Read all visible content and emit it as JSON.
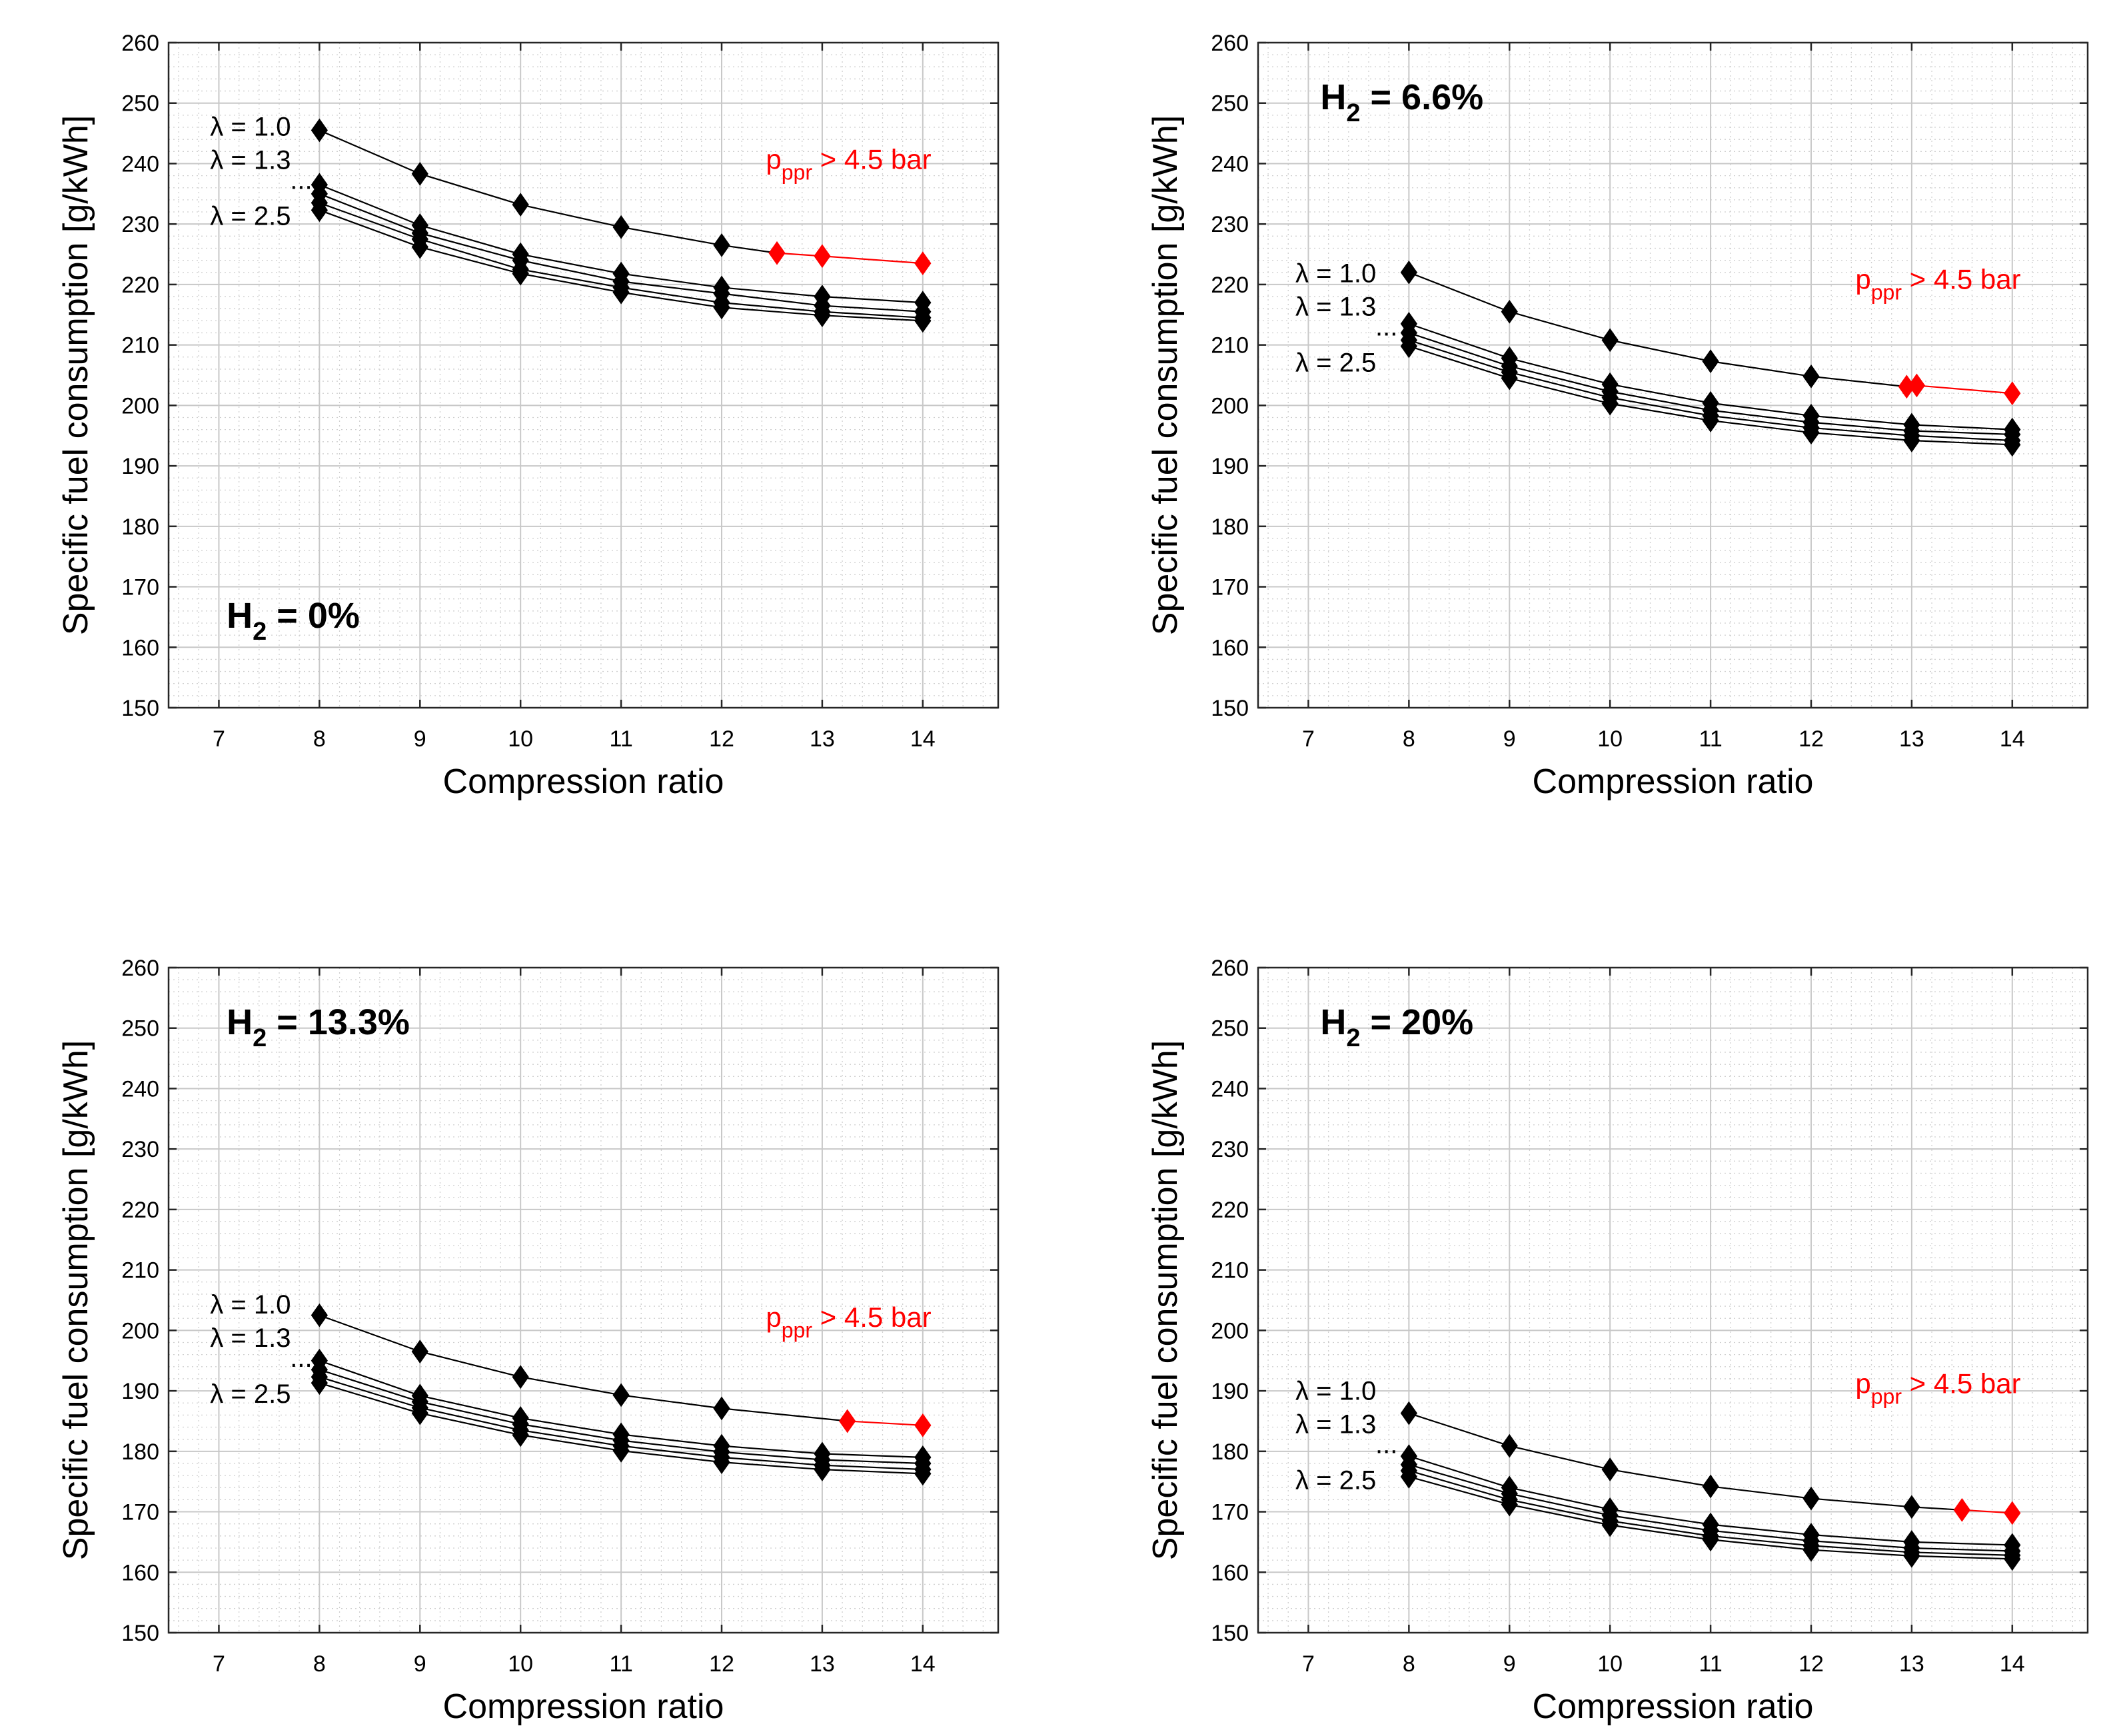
{
  "colors": {
    "normal": "#000000",
    "boost": "#ff0000",
    "grid_major": "#c8c8c8",
    "grid_minor": "#cfcfcf",
    "background": "#ffffff"
  },
  "chart_data": [
    {
      "type": "line",
      "title": "",
      "xlabel": "Compression ratio",
      "ylabel": "Specific fuel consumption [g/kWh]",
      "xlim": [
        6.5,
        14.75
      ],
      "ylim": [
        150,
        260
      ],
      "xticks": [
        "7",
        "8",
        "9",
        "10",
        "11",
        "12",
        "13",
        "14"
      ],
      "yticks": [
        "150",
        "160",
        "170",
        "180",
        "190",
        "200",
        "210",
        "220",
        "230",
        "240",
        "250",
        "260"
      ],
      "grid": "major+minor",
      "h2_label": {
        "prefix": "H",
        "sub": "2",
        "suffix": " = 0%"
      },
      "lambda_labels": [
        "λ = 1.0",
        "λ = 1.3",
        "...",
        "λ = 2.5"
      ],
      "boost_label": {
        "prefix": "p",
        "sub": "ppr",
        "suffix": " > 4.5 bar"
      },
      "series": [
        {
          "name": "λ = 1.0",
          "x": [
            8,
            9,
            10,
            11,
            12,
            12.55,
            13,
            14
          ],
          "y": [
            245.5,
            238.3,
            233.2,
            229.5,
            226.5,
            225.2,
            224.7,
            223.5
          ],
          "red_from_index": 5
        },
        {
          "name": "λ = 1.3",
          "x": [
            8,
            9,
            10,
            11,
            12,
            13,
            14
          ],
          "y": [
            236.5,
            229.8,
            225.0,
            221.8,
            219.5,
            218.0,
            217.0
          ]
        },
        {
          "name": "λ ...",
          "x": [
            8,
            9,
            10,
            11,
            12,
            13,
            14
          ],
          "y": [
            235.0,
            228.5,
            224.0,
            220.5,
            218.5,
            216.5,
            215.5
          ]
        },
        {
          "name": "λ ...",
          "x": [
            8,
            9,
            10,
            11,
            12,
            13,
            14
          ],
          "y": [
            233.5,
            227.5,
            222.5,
            219.5,
            217.0,
            215.5,
            214.5
          ]
        },
        {
          "name": "λ = 2.5",
          "x": [
            8,
            9,
            10,
            11,
            12,
            13,
            14
          ],
          "y": [
            232.3,
            226.2,
            221.8,
            218.7,
            216.2,
            214.9,
            214.0
          ]
        }
      ]
    },
    {
      "type": "line",
      "title": "",
      "xlabel": "Compression ratio",
      "ylabel": "Specific fuel consumption [g/kWh]",
      "xlim": [
        6.5,
        14.75
      ],
      "ylim": [
        150,
        260
      ],
      "xticks": [
        "7",
        "8",
        "9",
        "10",
        "11",
        "12",
        "13",
        "14"
      ],
      "yticks": [
        "150",
        "160",
        "170",
        "180",
        "190",
        "200",
        "210",
        "220",
        "230",
        "240",
        "250",
        "260"
      ],
      "grid": "major+minor",
      "h2_label": {
        "prefix": "H",
        "sub": "2",
        "suffix": " = 6.6%"
      },
      "lambda_labels": [
        "λ = 1.0",
        "λ = 1.3",
        "...",
        "λ = 2.5"
      ],
      "boost_label": {
        "prefix": "p",
        "sub": "ppr",
        "suffix": " > 4.5 bar"
      },
      "series": [
        {
          "name": "λ = 1.0",
          "x": [
            8,
            9,
            10,
            11,
            12,
            12.95,
            13.05,
            14
          ],
          "y": [
            222.0,
            215.5,
            210.8,
            207.3,
            204.8,
            203.1,
            203.3,
            202.0
          ],
          "red_from_index": 5
        },
        {
          "name": "λ = 1.3",
          "x": [
            8,
            9,
            10,
            11,
            12,
            13,
            14
          ],
          "y": [
            213.5,
            207.8,
            203.5,
            200.4,
            198.3,
            196.8,
            196.0
          ]
        },
        {
          "name": "λ ...",
          "x": [
            8,
            9,
            10,
            11,
            12,
            13,
            14
          ],
          "y": [
            212.0,
            206.5,
            202.3,
            199.2,
            197.2,
            195.8,
            195.2
          ]
        },
        {
          "name": "λ ...",
          "x": [
            8,
            9,
            10,
            11,
            12,
            13,
            14
          ],
          "y": [
            210.8,
            205.5,
            201.3,
            198.3,
            196.3,
            195.0,
            194.2
          ]
        },
        {
          "name": "λ = 2.5",
          "x": [
            8,
            9,
            10,
            11,
            12,
            13,
            14
          ],
          "y": [
            209.8,
            204.5,
            200.3,
            197.5,
            195.5,
            194.2,
            193.5
          ]
        }
      ]
    },
    {
      "type": "line",
      "title": "",
      "xlabel": "Compression ratio",
      "ylabel": "Specific fuel consumption [g/kWh]",
      "xlim": [
        6.5,
        14.75
      ],
      "ylim": [
        150,
        260
      ],
      "xticks": [
        "7",
        "8",
        "9",
        "10",
        "11",
        "12",
        "13",
        "14"
      ],
      "yticks": [
        "150",
        "160",
        "170",
        "180",
        "190",
        "200",
        "210",
        "220",
        "230",
        "240",
        "250",
        "260"
      ],
      "grid": "major+minor",
      "h2_label": {
        "prefix": "H",
        "sub": "2",
        "suffix": " = 13.3%"
      },
      "lambda_labels": [
        "λ = 1.0",
        "λ = 1.3",
        "...",
        "λ = 2.5"
      ],
      "boost_label": {
        "prefix": "p",
        "sub": "ppr",
        "suffix": " > 4.5 bar"
      },
      "series": [
        {
          "name": "λ = 1.0",
          "x": [
            8,
            9,
            10,
            11,
            12,
            13.25,
            14
          ],
          "y": [
            202.5,
            196.5,
            192.3,
            189.3,
            187.1,
            185.0,
            184.3
          ],
          "red_from_index": 5
        },
        {
          "name": "λ = 1.3",
          "x": [
            8,
            9,
            10,
            11,
            12,
            13,
            14
          ],
          "y": [
            195.0,
            189.2,
            185.5,
            182.8,
            180.9,
            179.6,
            179.0
          ]
        },
        {
          "name": "λ ...",
          "x": [
            8,
            9,
            10,
            11,
            12,
            13,
            14
          ],
          "y": [
            193.5,
            188.2,
            184.5,
            181.8,
            179.9,
            178.6,
            178.0
          ]
        },
        {
          "name": "λ ...",
          "x": [
            8,
            9,
            10,
            11,
            12,
            13,
            14
          ],
          "y": [
            192.3,
            187.2,
            183.5,
            180.9,
            179.0,
            177.7,
            177.0
          ]
        },
        {
          "name": "λ = 2.5",
          "x": [
            8,
            9,
            10,
            11,
            12,
            13,
            14
          ],
          "y": [
            191.3,
            186.3,
            182.7,
            180.1,
            178.2,
            177.0,
            176.3
          ]
        }
      ]
    },
    {
      "type": "line",
      "title": "",
      "xlabel": "Compression ratio",
      "ylabel": "Specific fuel consumption [g/kWh]",
      "xlim": [
        6.5,
        14.75
      ],
      "ylim": [
        150,
        260
      ],
      "xticks": [
        "7",
        "8",
        "9",
        "10",
        "11",
        "12",
        "13",
        "14"
      ],
      "yticks": [
        "150",
        "160",
        "170",
        "180",
        "190",
        "200",
        "210",
        "220",
        "230",
        "240",
        "250",
        "260"
      ],
      "grid": "major+minor",
      "h2_label": {
        "prefix": "H",
        "sub": "2",
        "suffix": " = 20%"
      },
      "lambda_labels": [
        "λ = 1.0",
        "λ = 1.3",
        "...",
        "λ = 2.5"
      ],
      "boost_label": {
        "prefix": "p",
        "sub": "ppr",
        "suffix": " > 4.5 bar"
      },
      "series": [
        {
          "name": "λ = 1.0",
          "x": [
            8,
            9,
            10,
            11,
            12,
            13,
            13.5,
            14
          ],
          "y": [
            186.3,
            180.9,
            177.0,
            174.2,
            172.2,
            170.8,
            170.3,
            169.8
          ],
          "red_from_index": 6
        },
        {
          "name": "λ = 1.3",
          "x": [
            8,
            9,
            10,
            11,
            12,
            13,
            14
          ],
          "y": [
            179.2,
            174.0,
            170.4,
            167.9,
            166.2,
            165.0,
            164.5
          ]
        },
        {
          "name": "λ ...",
          "x": [
            8,
            9,
            10,
            11,
            12,
            13,
            14
          ],
          "y": [
            177.8,
            173.0,
            169.4,
            166.9,
            165.2,
            164.0,
            163.5
          ]
        },
        {
          "name": "λ ...",
          "x": [
            8,
            9,
            10,
            11,
            12,
            13,
            14
          ],
          "y": [
            176.8,
            172.0,
            168.5,
            166.0,
            164.4,
            163.3,
            162.8
          ]
        },
        {
          "name": "λ = 2.5",
          "x": [
            8,
            9,
            10,
            11,
            12,
            13,
            14
          ],
          "y": [
            175.8,
            171.2,
            167.8,
            165.4,
            163.7,
            162.7,
            162.2
          ]
        }
      ]
    }
  ]
}
